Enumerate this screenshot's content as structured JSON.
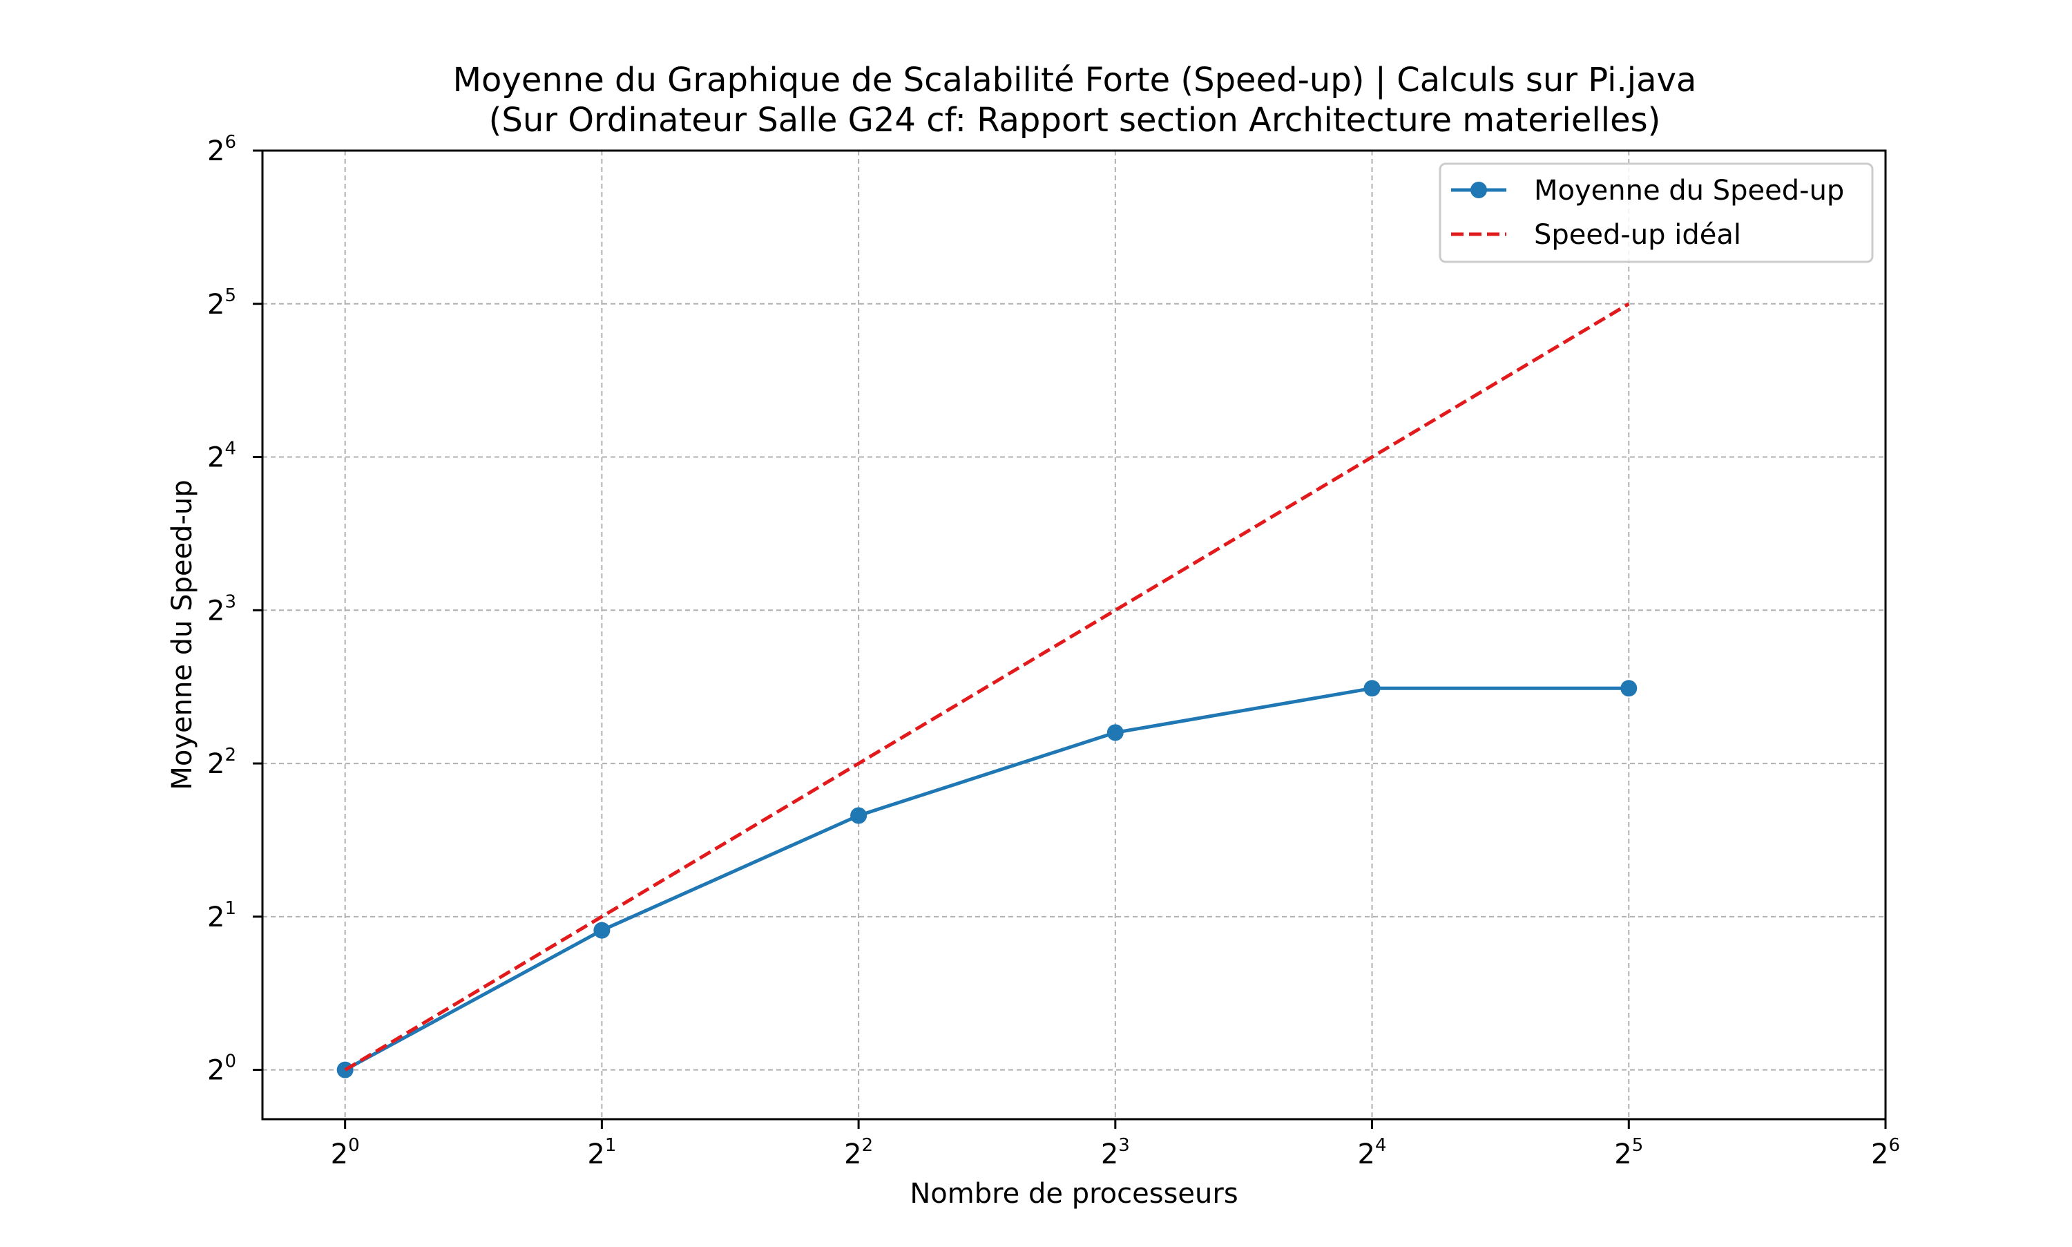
{
  "chart_data": {
    "type": "line",
    "title": "Moyenne du Graphique de Scalabilité Forte (Speed-up) | Calculs sur Pi.java",
    "subtitle": "(Sur Ordinateur Salle G24 cf: Rapport section Architecture materielles)",
    "xlabel": "Nombre de processeurs",
    "ylabel": "Moyenne du Speed-up",
    "xscale": "log2",
    "yscale": "log2",
    "xlim": [
      0.8,
      64
    ],
    "ylim": [
      0.8,
      64
    ],
    "x_ticks": [
      {
        "base": "2",
        "exp": "0",
        "value": 1
      },
      {
        "base": "2",
        "exp": "1",
        "value": 2
      },
      {
        "base": "2",
        "exp": "2",
        "value": 4
      },
      {
        "base": "2",
        "exp": "3",
        "value": 8
      },
      {
        "base": "2",
        "exp": "4",
        "value": 16
      },
      {
        "base": "2",
        "exp": "5",
        "value": 32
      },
      {
        "base": "2",
        "exp": "6",
        "value": 64
      }
    ],
    "y_ticks": [
      {
        "base": "2",
        "exp": "0",
        "value": 1
      },
      {
        "base": "2",
        "exp": "1",
        "value": 2
      },
      {
        "base": "2",
        "exp": "2",
        "value": 4
      },
      {
        "base": "2",
        "exp": "3",
        "value": 8
      },
      {
        "base": "2",
        "exp": "4",
        "value": 16
      },
      {
        "base": "2",
        "exp": "5",
        "value": 32
      },
      {
        "base": "2",
        "exp": "6",
        "value": 64
      }
    ],
    "grid": true,
    "legend_position": "top-right",
    "series": [
      {
        "name": "Moyenne du Speed-up",
        "style": "solid-markers",
        "color": "#1f77b4",
        "x": [
          1,
          2,
          4,
          8,
          16,
          32
        ],
        "y": [
          1.0,
          1.88,
          3.16,
          4.6,
          5.62,
          5.62
        ]
      },
      {
        "name": "Speed-up idéal",
        "style": "dashed",
        "color": "#e31a1c",
        "x": [
          1,
          2,
          4,
          8,
          16,
          32
        ],
        "y": [
          1,
          2,
          4,
          8,
          16,
          32
        ]
      }
    ]
  }
}
